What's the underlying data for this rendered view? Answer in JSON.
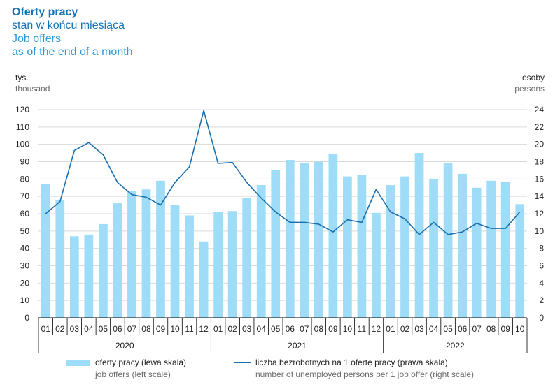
{
  "header": {
    "title_pl": "Oferty pracy",
    "subtitle_pl": "stan w końcu miesiąca",
    "title_en": "Job offers",
    "subtitle_en": "as of the end of a month"
  },
  "units": {
    "left_pl": "tys.",
    "left_en": "thousand",
    "right_pl": "osoby",
    "right_en": "persons"
  },
  "legend": {
    "bar_pl": "oferty pracy (lewa skala)",
    "bar_en": "job offers (left scale)",
    "line_pl": "liczba bezrobotnych na 1 ofertę pracy (prawa skala)",
    "line_en": "number of unemployed persons per 1 job offer (right scale)"
  },
  "colors": {
    "bar": "#9fdcf7",
    "line": "#1a6fae",
    "text": "#222222"
  },
  "chart_data": {
    "type": "bar",
    "title": "Oferty pracy — stan w końcu miesiąca / Job offers as of the end of a month",
    "categories": [
      "01",
      "02",
      "03",
      "04",
      "05",
      "06",
      "07",
      "08",
      "09",
      "10",
      "11",
      "12",
      "01",
      "02",
      "03",
      "04",
      "05",
      "06",
      "07",
      "08",
      "09",
      "10",
      "11",
      "12",
      "01",
      "02",
      "03",
      "04",
      "05",
      "06",
      "07",
      "08",
      "09",
      "10"
    ],
    "years": [
      {
        "label": "2020",
        "months": 12
      },
      {
        "label": "2021",
        "months": 12
      },
      {
        "label": "2022",
        "months": 10
      }
    ],
    "series": [
      {
        "name": "oferty pracy (lewa skala)",
        "type": "bar",
        "axis": "left",
        "values": [
          77,
          68,
          47,
          48,
          54,
          66,
          73,
          74,
          79,
          65,
          59,
          44,
          61,
          61.5,
          69,
          76.5,
          85,
          91,
          89,
          90,
          94.5,
          81.5,
          82.5,
          60.5,
          76.5,
          81.5,
          95,
          80,
          89,
          83,
          75,
          79,
          78.5,
          65.5
        ]
      },
      {
        "name": "liczba bezrobotnych na 1 ofertę pracy (prawa skala)",
        "type": "line",
        "axis": "right",
        "values": [
          12.0,
          13.4,
          19.3,
          20.2,
          18.8,
          15.6,
          14.2,
          13.9,
          13.0,
          15.6,
          17.4,
          23.9,
          17.8,
          17.9,
          15.6,
          13.8,
          12.2,
          11.0,
          11.0,
          10.8,
          9.9,
          11.3,
          11.0,
          14.8,
          12.2,
          11.4,
          9.6,
          11.0,
          9.6,
          9.9,
          10.9,
          10.3,
          10.3,
          12.2
        ]
      }
    ],
    "y_left": {
      "min": 0,
      "max": 120,
      "step": 10,
      "ticks": [
        "0",
        "10",
        "20",
        "30",
        "40",
        "50",
        "60",
        "70",
        "80",
        "90",
        "100",
        "110",
        "120"
      ]
    },
    "y_right": {
      "min": 0,
      "max": 24,
      "step": 2,
      "ticks": [
        "0",
        "2",
        "4",
        "6",
        "8",
        "10",
        "12",
        "14",
        "16",
        "18",
        "20",
        "22",
        "24"
      ]
    },
    "legend_position": "bottom"
  }
}
